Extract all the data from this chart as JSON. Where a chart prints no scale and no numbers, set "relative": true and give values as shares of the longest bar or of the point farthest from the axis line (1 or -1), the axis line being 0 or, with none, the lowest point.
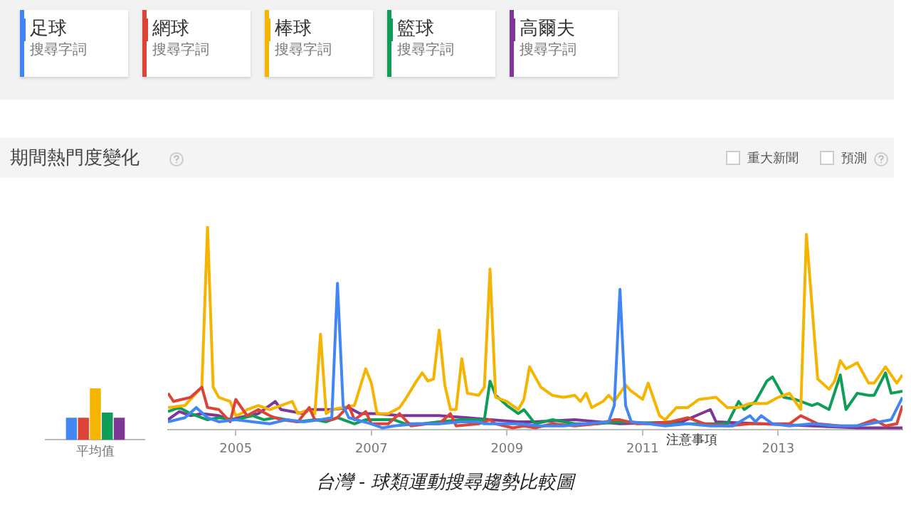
{
  "chart_data": [
    {
      "type": "bar",
      "relative": true,
      "categories": [
        "平均值"
      ],
      "series": [
        {
          "color": "#4285f4",
          "values": [
            0.43
          ]
        },
        {
          "color": "#db4437",
          "values": [
            0.43
          ]
        },
        {
          "color": "#f4b400",
          "values": [
            1
          ]
        },
        {
          "color": "#0f9d58",
          "values": [
            0.53
          ]
        },
        {
          "color": "#7e3794",
          "values": [
            0.43
          ]
        }
      ]
    },
    {
      "type": "line",
      "title": "期間熱門度變化",
      "relative": true,
      "legend": "top",
      "legend_title": "搜尋字詞",
      "xlim": [
        "2004-01",
        "2014-11"
      ],
      "xticks": [
        {
          "value": "2005-01",
          "label": "2005"
        },
        {
          "value": "2007-01",
          "label": "2007"
        },
        {
          "value": "2009-01",
          "label": "2009"
        },
        {
          "value": "2011-01",
          "label": "2011"
        },
        {
          "value": "2013-01",
          "label": "2013"
        }
      ],
      "annotations": [
        "重大新聞",
        "預測",
        "注意事項",
        "台灣 - 球類運動搜尋趨勢比較圖"
      ],
      "series": [
        {
          "name": "足球",
          "color": "#4285f4",
          "x": [
            "2004-01",
            "2004-04",
            "2004-06",
            "2004-08",
            "2004-10",
            "2005-01",
            "2005-04",
            "2005-07",
            "2005-10",
            "2006-01",
            "2006-04",
            "2006-06",
            "2006-07",
            "2006-08",
            "2006-09",
            "2007-01",
            "2007-03",
            "2007-05",
            "2007-09",
            "2008-01",
            "2008-05",
            "2008-08",
            "2008-09",
            "2008-11",
            "2009-03",
            "2009-07",
            "2009-11",
            "2010-03",
            "2010-07",
            "2010-08",
            "2010-09",
            "2010-10",
            "2010-11",
            "2011-02",
            "2011-05",
            "2011-09",
            "2012-01",
            "2012-05",
            "2012-08",
            "2012-09",
            "2012-10",
            "2012-12",
            "2013-03",
            "2013-07",
            "2013-11",
            "2014-03",
            "2014-07",
            "2014-09",
            "2014-11"
          ],
          "values": [
            0.04,
            0.06,
            0.11,
            0.06,
            0.04,
            0.05,
            0.04,
            0.03,
            0.05,
            0.04,
            0.05,
            0.06,
            0.72,
            0.12,
            0.06,
            0.03,
            0.01,
            0.02,
            0.03,
            0.03,
            0.04,
            0.04,
            0.03,
            0.03,
            0.03,
            0.02,
            0.02,
            0.03,
            0.04,
            0.12,
            0.69,
            0.12,
            0.04,
            0.03,
            0.02,
            0.03,
            0.02,
            0.02,
            0.07,
            0.04,
            0.07,
            0.03,
            0.02,
            0.03,
            0.02,
            0.02,
            0.04,
            0.05,
            0.16
          ]
        },
        {
          "name": "網球",
          "color": "#db4437",
          "x": [
            "2004-01",
            "2004-02",
            "2004-05",
            "2004-07",
            "2004-08",
            "2004-10",
            "2004-12",
            "2005-01",
            "2005-03",
            "2005-05",
            "2005-07",
            "2005-09",
            "2005-12",
            "2006-02",
            "2006-03",
            "2006-06",
            "2006-07",
            "2006-09",
            "2006-10",
            "2006-12",
            "2007-01",
            "2007-04",
            "2007-06",
            "2007-08",
            "2007-11",
            "2008-01",
            "2008-03",
            "2008-04",
            "2008-08",
            "2008-10",
            "2008-11",
            "2009-02",
            "2009-04",
            "2009-06",
            "2009-09",
            "2010-01",
            "2010-05",
            "2010-08",
            "2010-09",
            "2010-12",
            "2011-03",
            "2011-06",
            "2011-09",
            "2011-12",
            "2012-04",
            "2012-08",
            "2012-11",
            "2013-03",
            "2013-05",
            "2013-08",
            "2013-12",
            "2014-03",
            "2014-06",
            "2014-08",
            "2014-10",
            "2014-11"
          ],
          "values": [
            0.18,
            0.14,
            0.16,
            0.21,
            0.11,
            0.1,
            0.04,
            0.15,
            0.07,
            0.1,
            0.07,
            0.05,
            0.04,
            0.11,
            0.05,
            0.05,
            0.06,
            0.12,
            0.05,
            0.09,
            0.03,
            0.03,
            0.08,
            0.02,
            0.03,
            0.03,
            0.08,
            0.02,
            0.03,
            0.05,
            0.03,
            0.01,
            0.02,
            0.01,
            0.03,
            0.02,
            0.03,
            0.05,
            0.05,
            0.03,
            0.03,
            0.04,
            0.06,
            0.03,
            0.02,
            0.03,
            0.03,
            0.03,
            0.07,
            0.03,
            0.02,
            0.02,
            0.05,
            0.02,
            0.03,
            0.12
          ]
        },
        {
          "name": "棒球",
          "color": "#f4b400",
          "x": [
            "2004-01",
            "2004-04",
            "2004-05",
            "2004-07",
            "2004-08",
            "2004-09",
            "2004-10",
            "2004-12",
            "2005-01",
            "2005-02",
            "2005-03",
            "2005-05",
            "2005-07",
            "2005-09",
            "2005-11",
            "2005-12",
            "2006-02",
            "2006-03",
            "2006-04",
            "2006-05",
            "2006-06",
            "2006-08",
            "2006-10",
            "2006-12",
            "2007-01",
            "2007-02",
            "2007-04",
            "2007-06",
            "2007-07",
            "2007-09",
            "2007-10",
            "2007-11",
            "2007-12",
            "2008-01",
            "2008-02",
            "2008-03",
            "2008-04",
            "2008-05",
            "2008-06",
            "2008-08",
            "2008-09",
            "2008-10",
            "2008-11",
            "2009-01",
            "2009-03",
            "2009-04",
            "2009-05",
            "2009-07",
            "2009-09",
            "2009-11",
            "2010-01",
            "2010-02",
            "2010-03",
            "2010-04",
            "2010-06",
            "2010-07",
            "2010-08",
            "2010-10",
            "2010-11",
            "2011-01",
            "2011-02",
            "2011-04",
            "2011-05",
            "2011-07",
            "2011-09",
            "2011-11",
            "2012-02",
            "2012-04",
            "2012-06",
            "2012-08",
            "2012-10",
            "2012-11",
            "2013-01",
            "2013-03",
            "2013-05",
            "2013-06",
            "2013-08",
            "2013-10",
            "2013-11",
            "2013-12",
            "2014-01",
            "2014-03",
            "2014-05",
            "2014-06",
            "2014-08",
            "2014-10",
            "2014-11"
          ],
          "values": [
            0.11,
            0.12,
            0.15,
            0.21,
            1,
            0.21,
            0.16,
            0.14,
            0.07,
            0.08,
            0.1,
            0.12,
            0.1,
            0.12,
            0.14,
            0.08,
            0.1,
            0.08,
            0.47,
            0.08,
            0.1,
            0.11,
            0.12,
            0.3,
            0.23,
            0.08,
            0.08,
            0.11,
            0.15,
            0.24,
            0.28,
            0.24,
            0.25,
            0.49,
            0.22,
            0.1,
            0.1,
            0.35,
            0.18,
            0.17,
            0.21,
            0.79,
            0.16,
            0.14,
            0.1,
            0.15,
            0.31,
            0.21,
            0.17,
            0.16,
            0.17,
            0.14,
            0.18,
            0.11,
            0.14,
            0.17,
            0.14,
            0.22,
            0.19,
            0.15,
            0.23,
            0.07,
            0.05,
            0.11,
            0.11,
            0.15,
            0.16,
            0.11,
            0.11,
            0.13,
            0.13,
            0.13,
            0.16,
            0.18,
            0.1,
            0.96,
            0.25,
            0.2,
            0.24,
            0.34,
            0.3,
            0.33,
            0.23,
            0.23,
            0.31,
            0.23,
            0.27
          ]
        },
        {
          "name": "籃球",
          "color": "#0f9d58",
          "x": [
            "2004-01",
            "2004-03",
            "2004-05",
            "2004-08",
            "2004-10",
            "2005-01",
            "2005-04",
            "2005-06",
            "2005-08",
            "2005-12",
            "2006-03",
            "2006-05",
            "2006-07",
            "2006-10",
            "2006-12",
            "2007-02",
            "2007-05",
            "2007-07",
            "2007-10",
            "2008-01",
            "2008-05",
            "2008-09",
            "2008-10",
            "2008-11",
            "2009-01",
            "2009-03",
            "2009-04",
            "2009-06",
            "2009-09",
            "2010-01",
            "2010-05",
            "2010-09",
            "2011-05",
            "2011-12",
            "2012-04",
            "2012-06",
            "2012-07",
            "2012-09",
            "2012-11",
            "2012-12",
            "2013-02",
            "2013-04",
            "2013-07",
            "2013-08",
            "2013-10",
            "2013-12",
            "2014-01",
            "2014-03",
            "2014-05",
            "2014-06",
            "2014-08",
            "2014-09",
            "2014-11"
          ],
          "values": [
            0.09,
            0.11,
            0.08,
            0.05,
            0.06,
            0.05,
            0.07,
            0.05,
            0.06,
            0.04,
            0.05,
            0.04,
            0.06,
            0.03,
            0.05,
            0.05,
            0.05,
            0.03,
            0.03,
            0.04,
            0.05,
            0.05,
            0.24,
            0.17,
            0.12,
            0.08,
            0.1,
            0.03,
            0.05,
            0.03,
            0.03,
            0.04,
            0.03,
            0.03,
            0.03,
            0.14,
            0.1,
            0.14,
            0.24,
            0.26,
            0.16,
            0.15,
            0.12,
            0.13,
            0.1,
            0.27,
            0.1,
            0.18,
            0.17,
            0.17,
            0.28,
            0.18,
            0.19
          ]
        },
        {
          "name": "高爾夫",
          "color": "#7e3794",
          "x": [
            "2004-01",
            "2004-03",
            "2004-05",
            "2004-07",
            "2004-10",
            "2004-12",
            "2005-03",
            "2005-05",
            "2005-08",
            "2005-09",
            "2006-01",
            "2006-02",
            "2006-06",
            "2006-09",
            "2006-11",
            "2007-02",
            "2007-06",
            "2007-10",
            "2008-01",
            "2008-06",
            "2008-10",
            "2009-03",
            "2009-06",
            "2010-01",
            "2010-09",
            "2011-08",
            "2012-01",
            "2012-02",
            "2012-10",
            "2013-07",
            "2014-03",
            "2014-11"
          ],
          "values": [
            0.05,
            0.09,
            0.07,
            0.08,
            0.07,
            0.05,
            0.07,
            0.08,
            0.14,
            0.1,
            0.08,
            0.1,
            0.1,
            0.11,
            0.08,
            0.08,
            0.07,
            0.07,
            0.07,
            0.06,
            0.05,
            0.04,
            0.04,
            0.05,
            0.03,
            0.04,
            0.1,
            0.04,
            0.03,
            0.02,
            0.01,
            0.01
          ]
        }
      ]
    }
  ]
}
